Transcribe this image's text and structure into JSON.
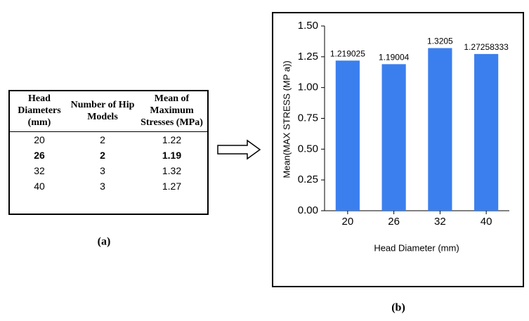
{
  "table": {
    "headers": [
      "Head Diameters (mm)",
      "Number of Hip Models",
      "Mean of Maximum Stresses (MPa)"
    ],
    "rows": [
      [
        "20",
        "2",
        "1.22"
      ],
      [
        "26",
        "2",
        "1.19"
      ],
      [
        "32",
        "3",
        "1.32"
      ],
      [
        "40",
        "3",
        "1.27"
      ]
    ],
    "caption": "(a)"
  },
  "chart_data": {
    "type": "bar",
    "caption": "(b)",
    "x_label": "Head Diameter (mm)",
    "y_label": "Mean(MAX STRESS (MP a))",
    "categories": [
      "20",
      "26",
      "32",
      "40"
    ],
    "values": [
      1.219025,
      1.19004,
      1.3205,
      1.27258333
    ],
    "color": "#3b7fee",
    "ylim": [
      0,
      1.5
    ],
    "yticks": [
      {
        "value": 0,
        "label": "0.00"
      },
      {
        "value": 0.25,
        "label": "0.25"
      },
      {
        "value": 0.5,
        "label": "0.50"
      },
      {
        "value": 0.75,
        "label": "0.75"
      },
      {
        "value": 1,
        "label": "1.00"
      },
      {
        "value": 1.25,
        "label": "1.25"
      },
      {
        "value": 1.5,
        "label": "1.50"
      }
    ]
  }
}
